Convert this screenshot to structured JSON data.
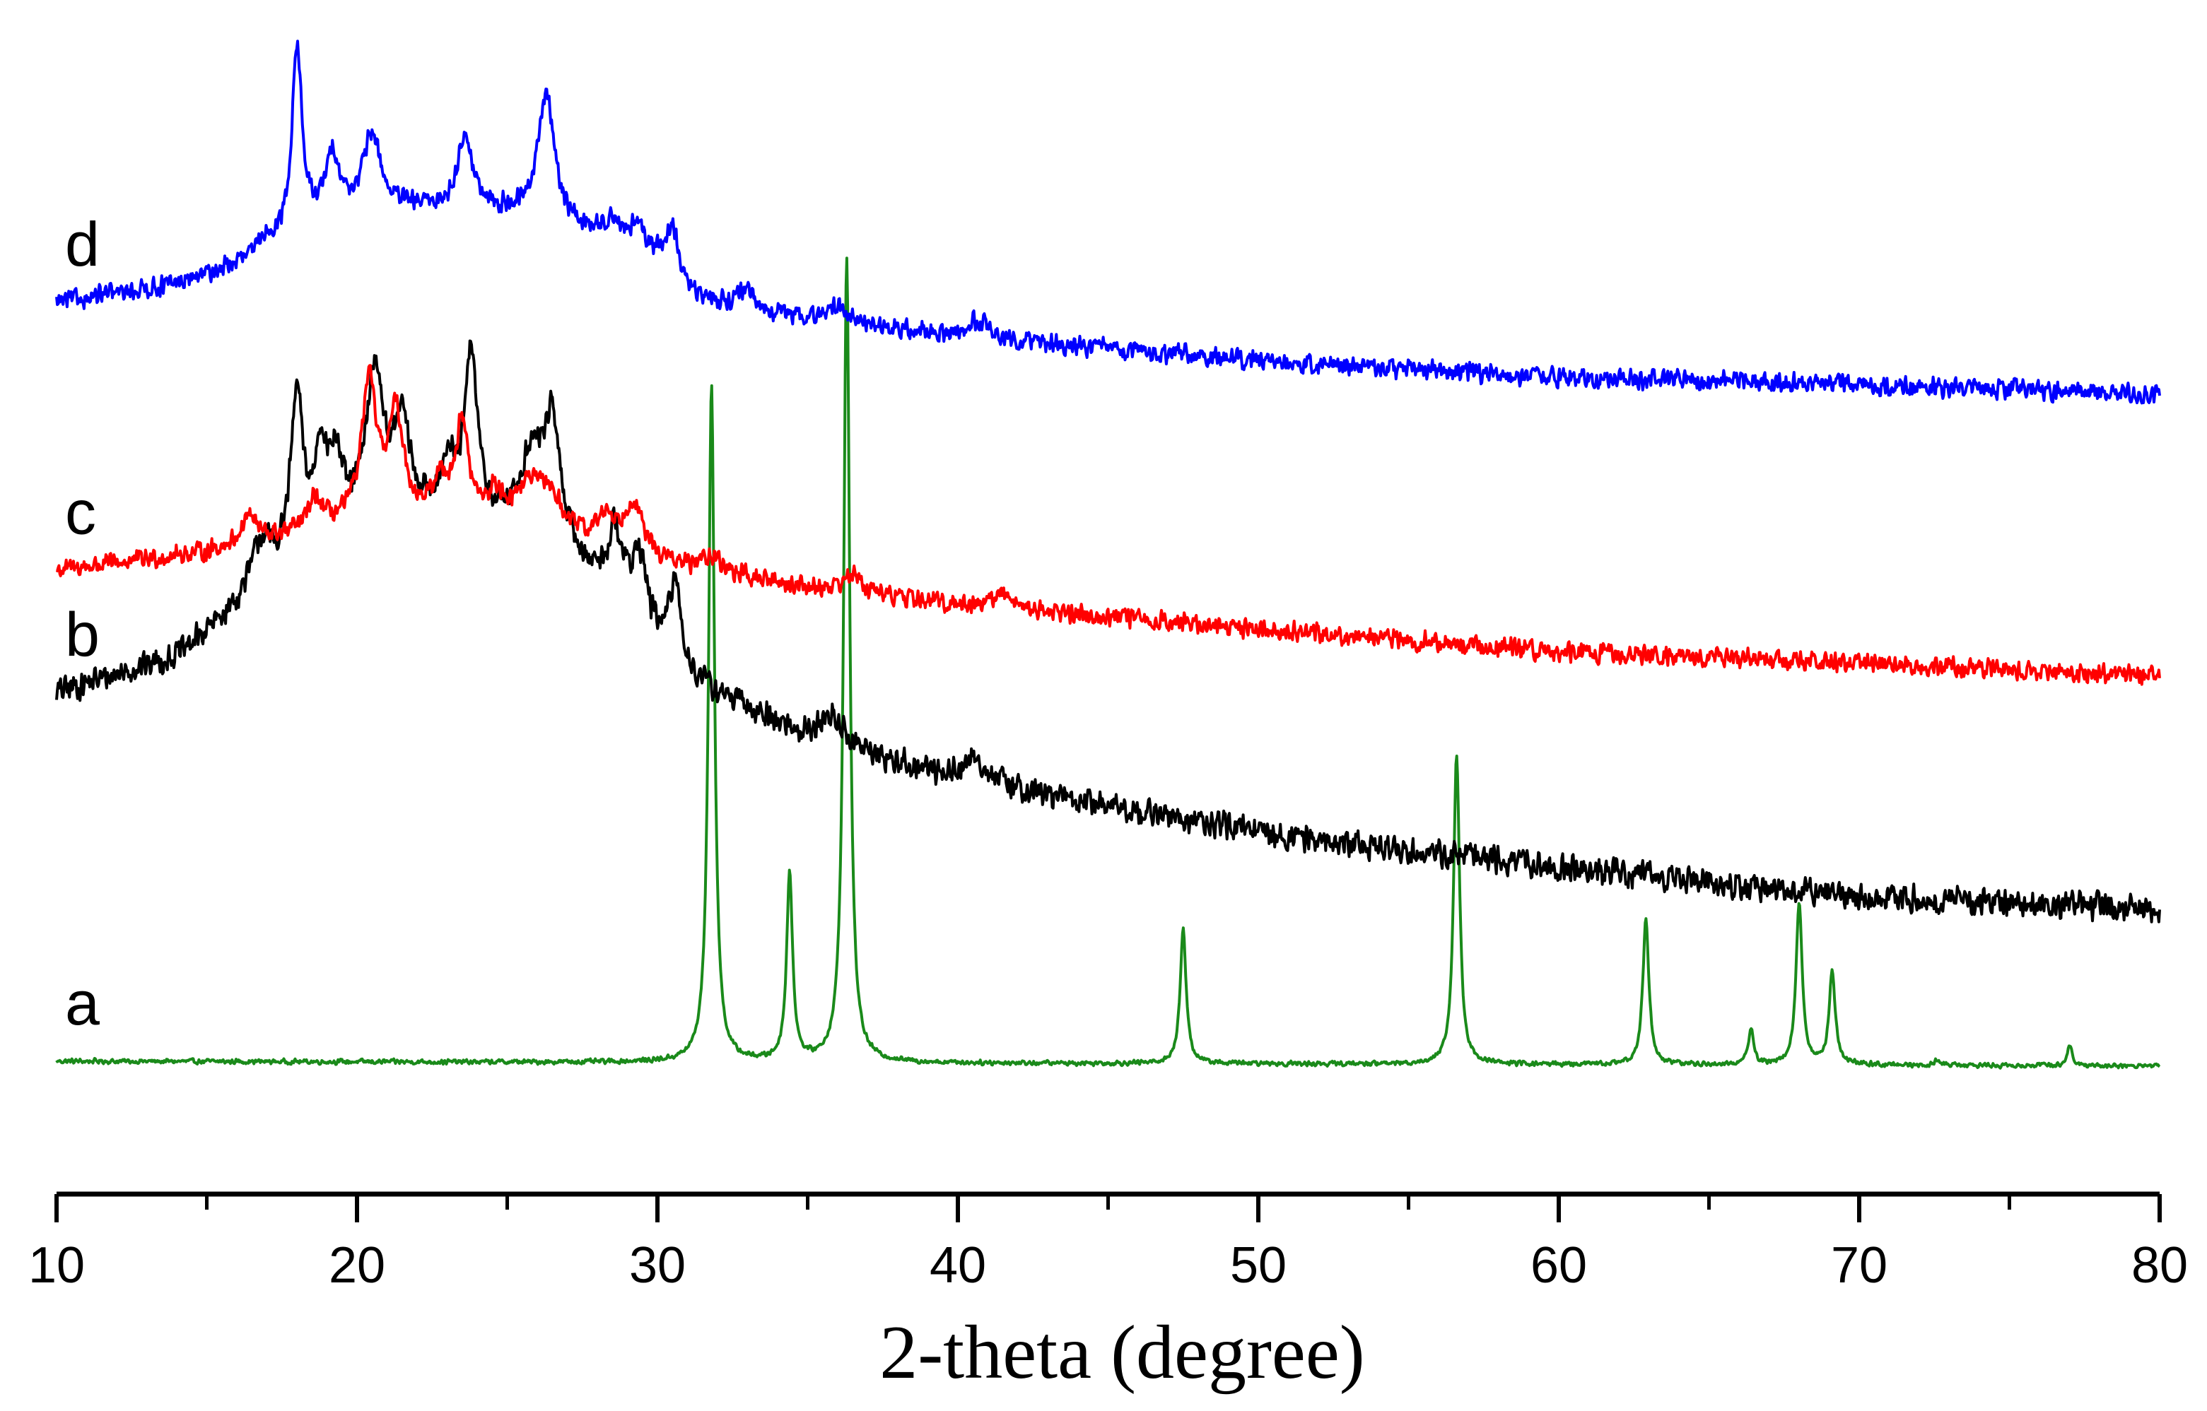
{
  "chart_data": {
    "type": "line",
    "title": "",
    "xlabel": "2-theta (degree)",
    "ylabel": "",
    "xlim": [
      10,
      80
    ],
    "y_axis_shown": false,
    "grid": false,
    "legend": "none; series labelled at left end of each trace",
    "x_ticks": [
      10,
      20,
      30,
      40,
      50,
      60,
      70,
      80
    ],
    "x_tick_labels": [
      "10",
      "20",
      "30",
      "40",
      "50",
      "60",
      "70",
      "80"
    ],
    "x_minor_ticks": [
      15,
      25,
      35,
      45,
      55,
      65,
      75
    ],
    "y_unit": "offset intensity (arbitrary units, 0 = bottom of plot, 100 = top)",
    "series": [
      {
        "name": "a",
        "color": "#1a8a1a",
        "baseline": [
          [
            10,
            11.4
          ],
          [
            80,
            11.0
          ]
        ],
        "noise": 0.25,
        "peaks": [
          {
            "x": 31.8,
            "height": 58.0,
            "width": 0.12
          },
          {
            "x": 34.4,
            "height": 16.0,
            "width": 0.12
          },
          {
            "x": 36.3,
            "height": 69.0,
            "width": 0.12
          },
          {
            "x": 47.5,
            "height": 11.5,
            "width": 0.12
          },
          {
            "x": 56.6,
            "height": 26.5,
            "width": 0.12
          },
          {
            "x": 62.9,
            "height": 12.5,
            "width": 0.12
          },
          {
            "x": 66.4,
            "height": 3.2,
            "width": 0.1
          },
          {
            "x": 68.0,
            "height": 14.0,
            "width": 0.12
          },
          {
            "x": 69.1,
            "height": 8.0,
            "width": 0.12
          },
          {
            "x": 72.6,
            "height": 0.5,
            "width": 0.1
          },
          {
            "x": 77.0,
            "height": 1.8,
            "width": 0.1
          }
        ]
      },
      {
        "name": "b",
        "color": "#000000",
        "baseline": [
          [
            10,
            43.0
          ],
          [
            14,
            46.0
          ],
          [
            17,
            52.0
          ],
          [
            20,
            57.0
          ],
          [
            23,
            58.0
          ],
          [
            26,
            56.0
          ],
          [
            28,
            52.0
          ],
          [
            31,
            44.0
          ],
          [
            35,
            39.0
          ],
          [
            40,
            35.5
          ],
          [
            50,
            31.0
          ],
          [
            60,
            28.0
          ],
          [
            70,
            25.5
          ],
          [
            80,
            24.5
          ]
        ],
        "noise": 1.4,
        "peaks": [
          {
            "x": 16.8,
            "height": 4.0,
            "width": 0.4
          },
          {
            "x": 18.0,
            "height": 14.0,
            "width": 0.25
          },
          {
            "x": 18.8,
            "height": 8.0,
            "width": 0.25
          },
          {
            "x": 19.3,
            "height": 6.0,
            "width": 0.25
          },
          {
            "x": 20.6,
            "height": 13.0,
            "width": 0.35
          },
          {
            "x": 21.5,
            "height": 8.0,
            "width": 0.3
          },
          {
            "x": 23.0,
            "height": 4.0,
            "width": 0.3
          },
          {
            "x": 23.8,
            "height": 14.0,
            "width": 0.25
          },
          {
            "x": 25.8,
            "height": 6.0,
            "width": 0.5
          },
          {
            "x": 26.5,
            "height": 10.0,
            "width": 0.35
          },
          {
            "x": 28.6,
            "height": 6.0,
            "width": 0.3
          },
          {
            "x": 29.4,
            "height": 6.0,
            "width": 0.3
          },
          {
            "x": 30.6,
            "height": 7.0,
            "width": 0.25
          },
          {
            "x": 35.8,
            "height": 2.5,
            "width": 0.5
          },
          {
            "x": 40.6,
            "height": 2.0,
            "width": 0.5
          }
        ]
      },
      {
        "name": "c",
        "color": "#ff0000",
        "baseline": [
          [
            10,
            53.5
          ],
          [
            15,
            55.0
          ],
          [
            18,
            56.5
          ],
          [
            21,
            58.0
          ],
          [
            25,
            57.5
          ],
          [
            28,
            55.5
          ],
          [
            31,
            53.5
          ],
          [
            35,
            52.0
          ],
          [
            40,
            50.5
          ],
          [
            50,
            48.5
          ],
          [
            60,
            46.5
          ],
          [
            70,
            45.5
          ],
          [
            80,
            44.5
          ]
        ],
        "noise": 1.0,
        "peaks": [
          {
            "x": 16.4,
            "height": 2.5,
            "width": 0.3
          },
          {
            "x": 18.6,
            "height": 2.5,
            "width": 0.3
          },
          {
            "x": 20.4,
            "height": 11.5,
            "width": 0.3
          },
          {
            "x": 21.3,
            "height": 8.5,
            "width": 0.3
          },
          {
            "x": 22.8,
            "height": 3.0,
            "width": 0.3
          },
          {
            "x": 23.5,
            "height": 8.0,
            "width": 0.25
          },
          {
            "x": 24.6,
            "height": 2.0,
            "width": 0.3
          },
          {
            "x": 25.7,
            "height": 3.0,
            "width": 0.5
          },
          {
            "x": 26.4,
            "height": 3.0,
            "width": 0.5
          },
          {
            "x": 28.3,
            "height": 2.5,
            "width": 0.35
          },
          {
            "x": 29.2,
            "height": 4.5,
            "width": 0.35
          },
          {
            "x": 31.8,
            "height": 1.5,
            "width": 0.4
          },
          {
            "x": 36.5,
            "height": 1.5,
            "width": 0.4
          },
          {
            "x": 41.5,
            "height": 1.2,
            "width": 0.5
          }
        ]
      },
      {
        "name": "d",
        "color": "#0000ff",
        "baseline": [
          [
            10,
            76.5
          ],
          [
            14,
            78.0
          ],
          [
            17,
            80.5
          ],
          [
            19,
            84.0
          ],
          [
            22,
            84.5
          ],
          [
            25,
            84.0
          ],
          [
            28,
            82.0
          ],
          [
            30,
            80.0
          ],
          [
            31,
            77.0
          ],
          [
            35,
            75.0
          ],
          [
            40,
            73.5
          ],
          [
            50,
            71.5
          ],
          [
            60,
            70.0
          ],
          [
            70,
            69.5
          ],
          [
            80,
            68.5
          ]
        ],
        "noise": 1.0,
        "peaks": [
          {
            "x": 17.0,
            "height": 1.5,
            "width": 0.3
          },
          {
            "x": 18.0,
            "height": 16.0,
            "width": 0.2
          },
          {
            "x": 19.2,
            "height": 5.0,
            "width": 0.25
          },
          {
            "x": 20.5,
            "height": 6.5,
            "width": 0.35
          },
          {
            "x": 23.6,
            "height": 6.5,
            "width": 0.3
          },
          {
            "x": 26.3,
            "height": 11.0,
            "width": 0.35
          },
          {
            "x": 28.5,
            "height": 2.0,
            "width": 0.3
          },
          {
            "x": 29.3,
            "height": 2.0,
            "width": 0.3
          },
          {
            "x": 30.5,
            "height": 4.5,
            "width": 0.25
          },
          {
            "x": 32.9,
            "height": 1.5,
            "width": 0.25
          },
          {
            "x": 36.0,
            "height": 1.5,
            "width": 0.4
          },
          {
            "x": 40.7,
            "height": 1.5,
            "width": 0.5
          }
        ]
      }
    ]
  }
}
